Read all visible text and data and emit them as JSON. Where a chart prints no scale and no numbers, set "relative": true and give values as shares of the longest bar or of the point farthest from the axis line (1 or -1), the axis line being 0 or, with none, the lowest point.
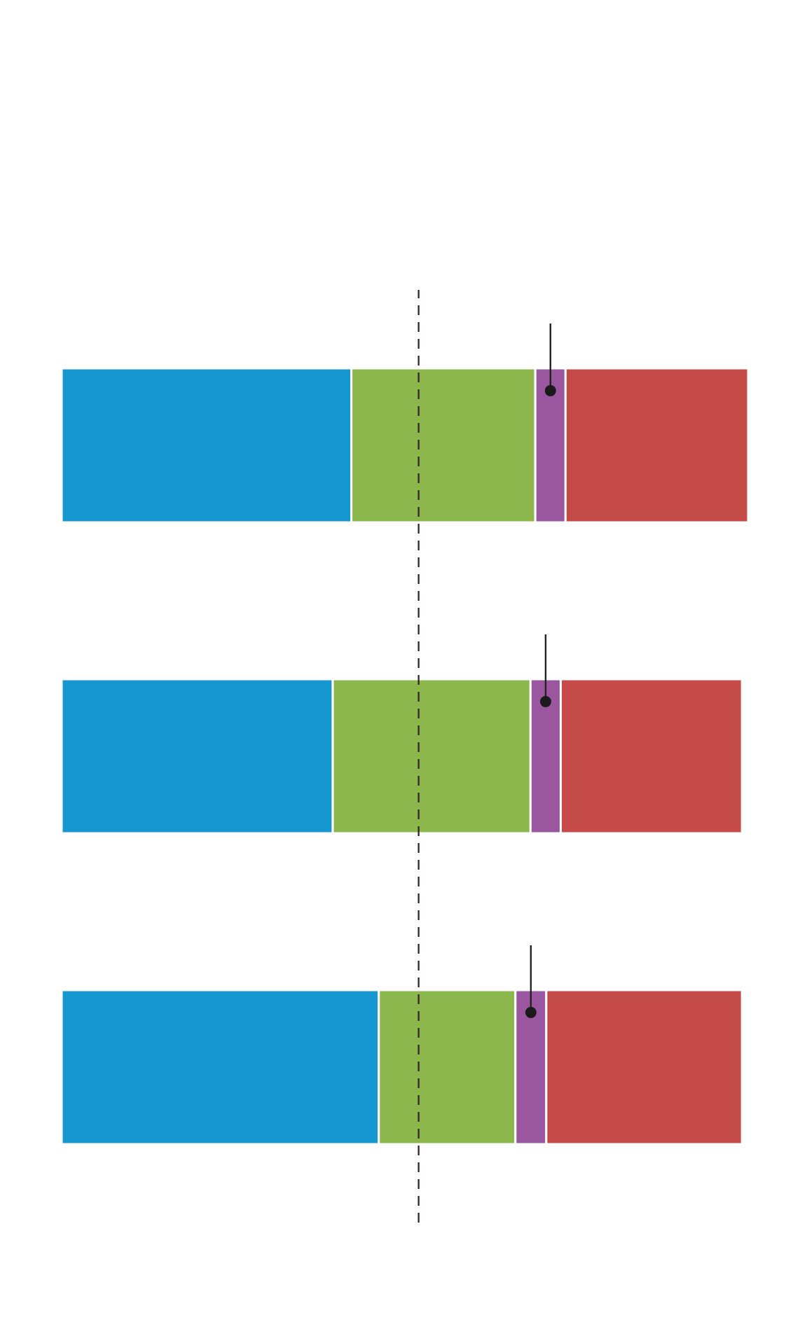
{
  "chart_data": {
    "type": "bar",
    "orientation": "horizontal",
    "stacked": true,
    "relative": true,
    "categories": [
      null,
      null,
      null
    ],
    "series": [
      {
        "color": "#1697cf",
        "values": [
          0.422,
          0.395,
          0.462
        ]
      },
      {
        "color": "#8cb74c",
        "values": [
          0.268,
          0.288,
          0.199
        ]
      },
      {
        "color": "#9b56a0",
        "values": [
          0.044,
          0.044,
          0.045
        ]
      },
      {
        "color": "#c44b47",
        "values": [
          0.266,
          0.264,
          0.285
        ]
      }
    ],
    "ref_lines": [
      {
        "axis": "x",
        "value": 0.52,
        "color": "#3b2b2b",
        "line_style": "dashed"
      }
    ]
  }
}
